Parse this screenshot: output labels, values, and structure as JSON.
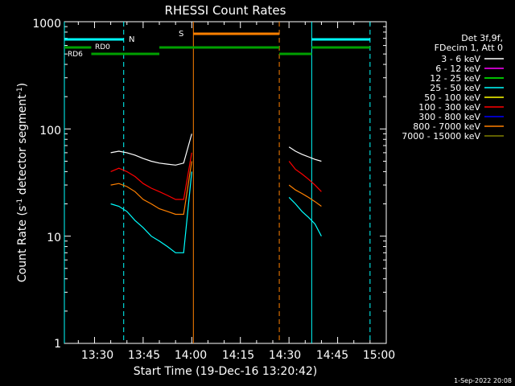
{
  "chart_data": {
    "type": "line",
    "title": "RHESSI Count Rates",
    "xlabel": "Start Time (19-Dec-16 13:20:42)",
    "ylabel_main": "Count Rate (s",
    "ylabel_sup1": "-1",
    "ylabel_mid": " detector segment",
    "ylabel_sup2": "-1",
    "ylabel_end": ")",
    "yscale": "log",
    "ylim": [
      1,
      1000
    ],
    "xlim_minutes": [
      "13:20:42",
      "15:00"
    ],
    "x_ticks": [
      "13:30",
      "13:45",
      "14:00",
      "14:15",
      "14:30",
      "14:45",
      "15:00"
    ],
    "y_ticks": [
      "1",
      "10",
      "100",
      "1000"
    ],
    "legend": {
      "header1": "Det 3f,9f,",
      "header2": "FDecim 1, Att 0",
      "entries": [
        {
          "label": "3 - 6 keV",
          "color": "#ffffff"
        },
        {
          "label": "6 - 12 keV",
          "color": "#ff00ff"
        },
        {
          "label": "12 - 25 keV",
          "color": "#00ff00"
        },
        {
          "label": "25 - 50 keV",
          "color": "#00ffff"
        },
        {
          "label": "50 - 100 keV",
          "color": "#ffff00"
        },
        {
          "label": "100 - 300 keV",
          "color": "#ff0000"
        },
        {
          "label": "300 - 800 keV",
          "color": "#0000ff"
        },
        {
          "label": "800 - 7000 keV",
          "color": "#ff8000"
        },
        {
          "label": "7000 - 15000 keV",
          "color": "#808000"
        }
      ]
    },
    "flags": {
      "night": "N",
      "saa": "S",
      "rd0": "RD0",
      "rd6": "RD6"
    },
    "segments": [
      {
        "start": "13:35",
        "end": "14:00",
        "series_levels": {
          "3 - 6 keV": [
            60,
            62,
            60,
            57,
            53,
            50,
            48,
            47,
            46,
            48,
            90
          ],
          "100 - 300 keV": [
            40,
            43,
            40,
            36,
            31,
            28,
            26,
            24,
            22,
            22,
            60
          ],
          "800 - 7000 keV": [
            30,
            31,
            29,
            26,
            22,
            20,
            18,
            17,
            16,
            16,
            50
          ],
          "25 - 50 keV": [
            20,
            19,
            17,
            14,
            12,
            10,
            9,
            8,
            7,
            7,
            40
          ]
        }
      },
      {
        "start": "14:30",
        "end": "14:40",
        "series_levels": {
          "3 - 6 keV": [
            68,
            62,
            58,
            55,
            52,
            50
          ],
          "100 - 300 keV": [
            50,
            42,
            38,
            34,
            30,
            26
          ],
          "800 - 7000 keV": [
            30,
            27,
            25,
            23,
            21,
            19
          ],
          "25 - 50 keV": [
            23,
            20,
            17,
            15,
            13,
            10
          ]
        }
      }
    ]
  },
  "timestamp": "1-Sep-2022 20:08"
}
